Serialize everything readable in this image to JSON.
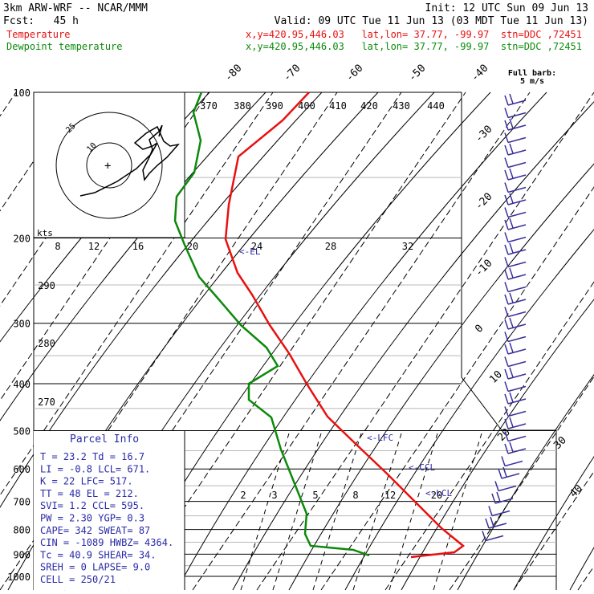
{
  "header": {
    "model": "3km ARW-WRF -- NCAR/MMM",
    "init": "Init: 12 UTC Sun 09 Jun 13",
    "fcst": "Fcst:   45 h",
    "valid": "Valid: 09 UTC Tue 11 Jun 13 (03 MDT Tue 11 Jun 13)",
    "temp_label": "Temperature",
    "temp_meta": "x,y=420.95,446.03   lat,lon= 37.77, -99.97  stn=DDC ,72451",
    "dew_label": "Dewpoint temperature",
    "dew_meta": "x,y=420.95,446.03   lat,lon= 37.77, -99.97  stn=DDC ,72451"
  },
  "colors": {
    "temperature": "#e81010",
    "dewpoint": "#0c8a0c",
    "wind": "#3a2f9a",
    "parcel_text": "#2a2aa8",
    "grid": "#000000"
  },
  "pressure_labels": [
    "100",
    "200",
    "300",
    "400",
    "500",
    "600",
    "700",
    "800",
    "900",
    "1000"
  ],
  "isotherm_labels": [
    "-80",
    "-70",
    "-60",
    "-50",
    "-40",
    "-30",
    "-20",
    "-10",
    "0",
    "10",
    "20",
    "30",
    "40"
  ],
  "theta_labels": [
    "370",
    "380",
    "390",
    "400",
    "410",
    "420",
    "430",
    "440"
  ],
  "dry_adiabat_labels": [
    "290",
    "280",
    "270"
  ],
  "mixing_ratio_labels": [
    "2",
    "3",
    "5",
    "8",
    "12",
    "20"
  ],
  "hodograph": {
    "kts_label": "kts",
    "speed_ticks": [
      "8",
      "12",
      "16",
      "20",
      "24",
      "28",
      "32"
    ],
    "ring_labels": [
      "25",
      "10"
    ]
  },
  "wind_legend": "Full barb:\n5 m/s",
  "levels": {
    "el": "<-EL",
    "lfc": "<-LFC",
    "ccl": "<-CCL",
    "lcl": "<-LCL"
  },
  "parcel_info": {
    "title": "Parcel Info",
    "rows": [
      "T  =    23.2  Td =  16.7",
      "LI =    -0.8  LCL=  671.",
      "K  =      22  LFC=  517.",
      "TT =      48  EL =  212.",
      "SVI=     1.2  CCL=  595.",
      "PW =    2.30  YGP=   0.3",
      "CAPE=    342  SWEAT=  87",
      "CIN = -1089  HWBZ= 4364.",
      "Tc =    40.9  SHEAR=  34.",
      "SREH =     0  LAPSE=  9.0",
      "CELL = 250/21"
    ]
  },
  "chart_data": {
    "type": "line",
    "title": "3km ARW-WRF -- NCAR/MMM",
    "xlabel": "",
    "ylabel": "",
    "yscale": "log-pressure",
    "ylim": [
      1000,
      100
    ],
    "series": [
      {
        "name": "Temperature",
        "points": [
          [
            385,
            115
          ],
          [
            352,
            150
          ],
          [
            297,
            195
          ],
          [
            285,
            255
          ],
          [
            281,
            298
          ],
          [
            296,
            340
          ],
          [
            314,
            367
          ],
          [
            336,
            405
          ],
          [
            360,
            440
          ],
          [
            382,
            478
          ],
          [
            408,
            519
          ],
          [
            440,
            550
          ],
          [
            482,
            590
          ],
          [
            520,
            628
          ],
          [
            550,
            658
          ],
          [
            577,
            680
          ],
          [
            566,
            688
          ],
          [
            512,
            694
          ]
        ]
      },
      {
        "name": "Dewpoint temperature",
        "points": [
          [
            251,
            115
          ],
          [
            241,
            140
          ],
          [
            250,
            175
          ],
          [
            242,
            215
          ],
          [
            220,
            245
          ],
          [
            218,
            275
          ],
          [
            230,
            305
          ],
          [
            248,
            345
          ],
          [
            270,
            370
          ],
          [
            300,
            405
          ],
          [
            332,
            433
          ],
          [
            346,
            456
          ],
          [
            310,
            478
          ],
          [
            310,
            498
          ],
          [
            338,
            520
          ],
          [
            350,
            560
          ],
          [
            370,
            610
          ],
          [
            382,
            640
          ],
          [
            380,
            665
          ],
          [
            387,
            680
          ],
          [
            440,
            685
          ],
          [
            460,
            692
          ]
        ]
      }
    ]
  }
}
